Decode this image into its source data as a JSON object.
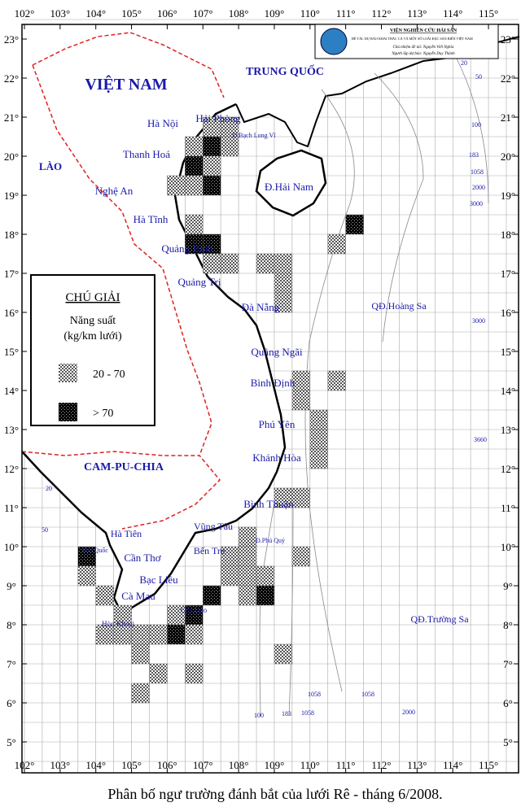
{
  "header": {
    "institute": "VIỆN NGHIÊN CỨU HẢI SẢN",
    "project": "ĐỀ TÀI: DỰ BÁO KHAI THÁC CÁ VÀ MỘT SỐ LOÀI ĐẶC SẢN BIỂN VIỆT NAM",
    "lead": "Chủ nhiệm đề tài: Nguyễn Viết Nghĩa",
    "forecaster": "Người lập dự báo: Nguyễn Duy Thành"
  },
  "map": {
    "lon_ticks": [
      {
        "value": 102,
        "label": "102°"
      },
      {
        "value": 103,
        "label": "103°"
      },
      {
        "value": 104,
        "label": "104°"
      },
      {
        "value": 105,
        "label": "105°"
      },
      {
        "value": 106,
        "label": "106°"
      },
      {
        "value": 107,
        "label": "107°"
      },
      {
        "value": 108,
        "label": "108°"
      },
      {
        "value": 109,
        "label": "109°"
      },
      {
        "value": 110,
        "label": "110°"
      },
      {
        "value": 111,
        "label": "111°"
      },
      {
        "value": 112,
        "label": "112°"
      },
      {
        "value": 113,
        "label": "113°"
      },
      {
        "value": 114,
        "label": "114°"
      },
      {
        "value": 115,
        "label": "115°"
      }
    ],
    "lat_ticks": [
      {
        "value": 23,
        "label": "23°"
      },
      {
        "value": 22,
        "label": "22°"
      },
      {
        "value": 21,
        "label": "21°"
      },
      {
        "value": 20,
        "label": "20°"
      },
      {
        "value": 19,
        "label": "19°"
      },
      {
        "value": 18,
        "label": "18°"
      },
      {
        "value": 17,
        "label": "17°"
      },
      {
        "value": 16,
        "label": "16°"
      },
      {
        "value": 15,
        "label": "15°"
      },
      {
        "value": 14,
        "label": "14°"
      },
      {
        "value": 13,
        "label": "13°"
      },
      {
        "value": 12,
        "label": "12°"
      },
      {
        "value": 11,
        "label": "11°"
      },
      {
        "value": 10,
        "label": "10°"
      },
      {
        "value": 9,
        "label": "9°"
      },
      {
        "value": 8,
        "label": "8°"
      },
      {
        "value": 7,
        "label": "7°"
      },
      {
        "value": 6,
        "label": "6°"
      },
      {
        "value": 5,
        "label": "5°"
      }
    ],
    "places": [
      {
        "label": "VIỆT NAM"
      },
      {
        "label": "TRUNG QUỐC"
      },
      {
        "label": "LÀO"
      },
      {
        "label": "CAM-PU-CHIA"
      },
      {
        "label": "Hà Nội"
      },
      {
        "label": "Hải Phòng"
      },
      {
        "label": "Đ.Bạch Long Vĩ"
      },
      {
        "label": "Thanh Hoá"
      },
      {
        "label": "Nghệ An"
      },
      {
        "label": "Đ.Hải Nam"
      },
      {
        "label": "Hà Tĩnh"
      },
      {
        "label": "Quảng Bình"
      },
      {
        "label": "Quảng Trị"
      },
      {
        "label": "Đà Nẵng"
      },
      {
        "label": "QĐ.Hoàng Sa"
      },
      {
        "label": "Quảng Ngãi"
      },
      {
        "label": "Bình Định"
      },
      {
        "label": "Phú Yên"
      },
      {
        "label": "Khánh Hòa"
      },
      {
        "label": "Bình Thuận"
      },
      {
        "label": "Vũng Tàu"
      },
      {
        "label": "Đ.Phú Quý"
      },
      {
        "label": "Bến Tre"
      },
      {
        "label": "Hà Tiên"
      },
      {
        "label": "Phú Quốc"
      },
      {
        "label": "Cần Thơ"
      },
      {
        "label": "Bạc Liêu"
      },
      {
        "label": "Cà Mau"
      },
      {
        "label": "Hòn Khoai"
      },
      {
        "label": "Côn Đảo"
      },
      {
        "label": "QĐ.Trường Sa"
      }
    ],
    "depth_labels": [
      {
        "label": "20"
      },
      {
        "label": "50"
      },
      {
        "label": "100"
      },
      {
        "label": "183"
      },
      {
        "label": "1058"
      },
      {
        "label": "2000"
      },
      {
        "label": "3000"
      },
      {
        "label": "3000"
      },
      {
        "label": "3660"
      },
      {
        "label": "20"
      },
      {
        "label": "50"
      },
      {
        "label": "100"
      },
      {
        "label": "183"
      },
      {
        "label": "1058"
      },
      {
        "label": "1058"
      },
      {
        "label": "1058"
      },
      {
        "label": "2000"
      }
    ],
    "legend": {
      "title": "CHÚ GIẢI",
      "line1": "Năng suất",
      "line2": "(kg/km lưới)",
      "items": [
        {
          "label": "20 - 70"
        },
        {
          "label": "> 70"
        }
      ]
    },
    "cells": [
      {
        "lon": 107,
        "lat": 20.5,
        "level": 0
      },
      {
        "lon": 107.5,
        "lat": 20.5,
        "level": 0
      },
      {
        "lon": 106.5,
        "lat": 20,
        "level": 0
      },
      {
        "lon": 107,
        "lat": 20,
        "level": 1
      },
      {
        "lon": 107.5,
        "lat": 20,
        "level": 0
      },
      {
        "lon": 106.5,
        "lat": 19.5,
        "level": 1
      },
      {
        "lon": 107,
        "lat": 19.5,
        "level": 0
      },
      {
        "lon": 106,
        "lat": 19,
        "level": 0
      },
      {
        "lon": 106.5,
        "lat": 19,
        "level": 0
      },
      {
        "lon": 107,
        "lat": 19,
        "level": 1
      },
      {
        "lon": 106.5,
        "lat": 18,
        "level": 0
      },
      {
        "lon": 106.5,
        "lat": 17.5,
        "level": 1
      },
      {
        "lon": 107,
        "lat": 17.5,
        "level": 1
      },
      {
        "lon": 107,
        "lat": 17,
        "level": 0
      },
      {
        "lon": 107.5,
        "lat": 17,
        "level": 0
      },
      {
        "lon": 108.5,
        "lat": 17,
        "level": 0
      },
      {
        "lon": 109,
        "lat": 17,
        "level": 0
      },
      {
        "lon": 109,
        "lat": 16.5,
        "level": 0
      },
      {
        "lon": 109,
        "lat": 16,
        "level": 0
      },
      {
        "lon": 111,
        "lat": 18,
        "level": 1
      },
      {
        "lon": 110.5,
        "lat": 17.5,
        "level": 0
      },
      {
        "lon": 109.5,
        "lat": 14,
        "level": 0
      },
      {
        "lon": 110.5,
        "lat": 14,
        "level": 0
      },
      {
        "lon": 109.5,
        "lat": 13.5,
        "level": 0
      },
      {
        "lon": 110,
        "lat": 13,
        "level": 0
      },
      {
        "lon": 110,
        "lat": 12.5,
        "level": 0
      },
      {
        "lon": 110,
        "lat": 12,
        "level": 0
      },
      {
        "lon": 109,
        "lat": 11,
        "level": 0
      },
      {
        "lon": 109.5,
        "lat": 11,
        "level": 0
      },
      {
        "lon": 108,
        "lat": 10,
        "level": 0
      },
      {
        "lon": 103.5,
        "lat": 9.5,
        "level": 1
      },
      {
        "lon": 107.5,
        "lat": 9.5,
        "level": 0
      },
      {
        "lon": 108,
        "lat": 9.5,
        "level": 0
      },
      {
        "lon": 109.5,
        "lat": 9.5,
        "level": 0
      },
      {
        "lon": 103.5,
        "lat": 9,
        "level": 0
      },
      {
        "lon": 107.5,
        "lat": 9,
        "level": 0
      },
      {
        "lon": 108,
        "lat": 9,
        "level": 0
      },
      {
        "lon": 108.5,
        "lat": 9,
        "level": 0
      },
      {
        "lon": 104,
        "lat": 8.5,
        "level": 0
      },
      {
        "lon": 107,
        "lat": 8.5,
        "level": 1
      },
      {
        "lon": 108,
        "lat": 8.5,
        "level": 0
      },
      {
        "lon": 108.5,
        "lat": 8.5,
        "level": 1
      },
      {
        "lon": 104.5,
        "lat": 8,
        "level": 0
      },
      {
        "lon": 106,
        "lat": 8,
        "level": 0
      },
      {
        "lon": 106.5,
        "lat": 8,
        "level": 1
      },
      {
        "lon": 104,
        "lat": 7.5,
        "level": 0
      },
      {
        "lon": 104.5,
        "lat": 7.5,
        "level": 0
      },
      {
        "lon": 105,
        "lat": 7.5,
        "level": 0
      },
      {
        "lon": 105.5,
        "lat": 7.5,
        "level": 0
      },
      {
        "lon": 106,
        "lat": 7.5,
        "level": 1
      },
      {
        "lon": 106.5,
        "lat": 7.5,
        "level": 0
      },
      {
        "lon": 105,
        "lat": 7,
        "level": 0
      },
      {
        "lon": 109,
        "lat": 7,
        "level": 0
      },
      {
        "lon": 105.5,
        "lat": 6.5,
        "level": 0
      },
      {
        "lon": 106.5,
        "lat": 6.5,
        "level": 0
      },
      {
        "lon": 105,
        "lat": 6,
        "level": 0
      }
    ]
  },
  "caption": "Phân bố ngư trường đánh bắt của lưới Rê - tháng 6/2008."
}
